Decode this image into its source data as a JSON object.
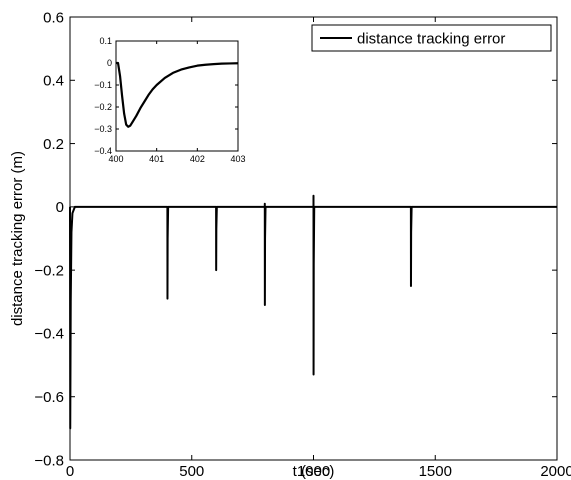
{
  "chart_data": [
    {
      "type": "line",
      "title": "",
      "xlabel": "t (sec)",
      "ylabel": "distance tracking error (m)",
      "xlim": [
        0,
        2000
      ],
      "ylim": [
        -0.8,
        0.6
      ],
      "x_ticks": [
        0,
        500,
        1000,
        1500,
        2000
      ],
      "x_tick_labels": [
        "0",
        "500",
        "1000",
        "1500",
        "2000"
      ],
      "y_ticks": [
        0.6,
        0.4,
        0.2,
        0,
        -0.2,
        -0.4,
        -0.6,
        -0.8
      ],
      "y_tick_labels": [
        "0.6",
        "0.4",
        "0.2",
        "0",
        "−0.2",
        "−0.4",
        "−0.6",
        "−0.8"
      ],
      "grid": false,
      "legend": {
        "position": "top-right",
        "entries": [
          "distance tracking error"
        ]
      },
      "series": [
        {
          "name": "distance tracking error",
          "color": "#000000",
          "x": [
            0,
            1,
            3,
            6,
            10,
            20,
            30,
            399.9,
            400,
            400.3,
            401,
            403,
            599.9,
            600,
            600.3,
            601,
            603,
            799.9,
            800,
            800.3,
            801,
            803,
            999.9,
            1000,
            1000.3,
            1001,
            1003,
            1399.9,
            1400,
            1400.3,
            1401,
            1403,
            2000
          ],
          "y": [
            0,
            -0.7,
            -0.3,
            -0.08,
            -0.02,
            0,
            0,
            0,
            0,
            -0.29,
            -0.1,
            0,
            0,
            0,
            -0.2,
            -0.07,
            0,
            0,
            0.01,
            -0.31,
            -0.1,
            0,
            0,
            0.035,
            -0.53,
            -0.18,
            0,
            0,
            0,
            -0.25,
            -0.08,
            0,
            0
          ]
        }
      ]
    },
    {
      "type": "line",
      "title": "",
      "xlabel": "",
      "ylabel": "",
      "xlim": [
        400,
        403
      ],
      "ylim": [
        -0.4,
        0.1
      ],
      "x_ticks": [
        400,
        401,
        402,
        403
      ],
      "x_tick_labels": [
        "400",
        "401",
        "402",
        "403"
      ],
      "y_ticks": [
        0.1,
        0,
        -0.1,
        -0.2,
        -0.3,
        -0.4
      ],
      "y_tick_labels": [
        "0.1",
        "0",
        "−0.1",
        "−0.2",
        "−0.3",
        "−0.4"
      ],
      "grid": false,
      "series": [
        {
          "color": "#000000",
          "x": [
            400,
            400.05,
            400.1,
            400.15,
            400.2,
            400.25,
            400.3,
            400.35,
            400.4,
            400.5,
            400.6,
            400.7,
            400.8,
            400.9,
            401.0,
            401.2,
            401.4,
            401.6,
            401.8,
            402.0,
            402.2,
            402.4,
            402.6,
            402.8,
            403.0
          ],
          "y": [
            0,
            0,
            -0.06,
            -0.15,
            -0.23,
            -0.28,
            -0.29,
            -0.285,
            -0.27,
            -0.24,
            -0.205,
            -0.175,
            -0.145,
            -0.12,
            -0.1,
            -0.068,
            -0.045,
            -0.03,
            -0.02,
            -0.012,
            -0.008,
            -0.005,
            -0.003,
            -0.002,
            -0.001
          ]
        }
      ]
    }
  ]
}
